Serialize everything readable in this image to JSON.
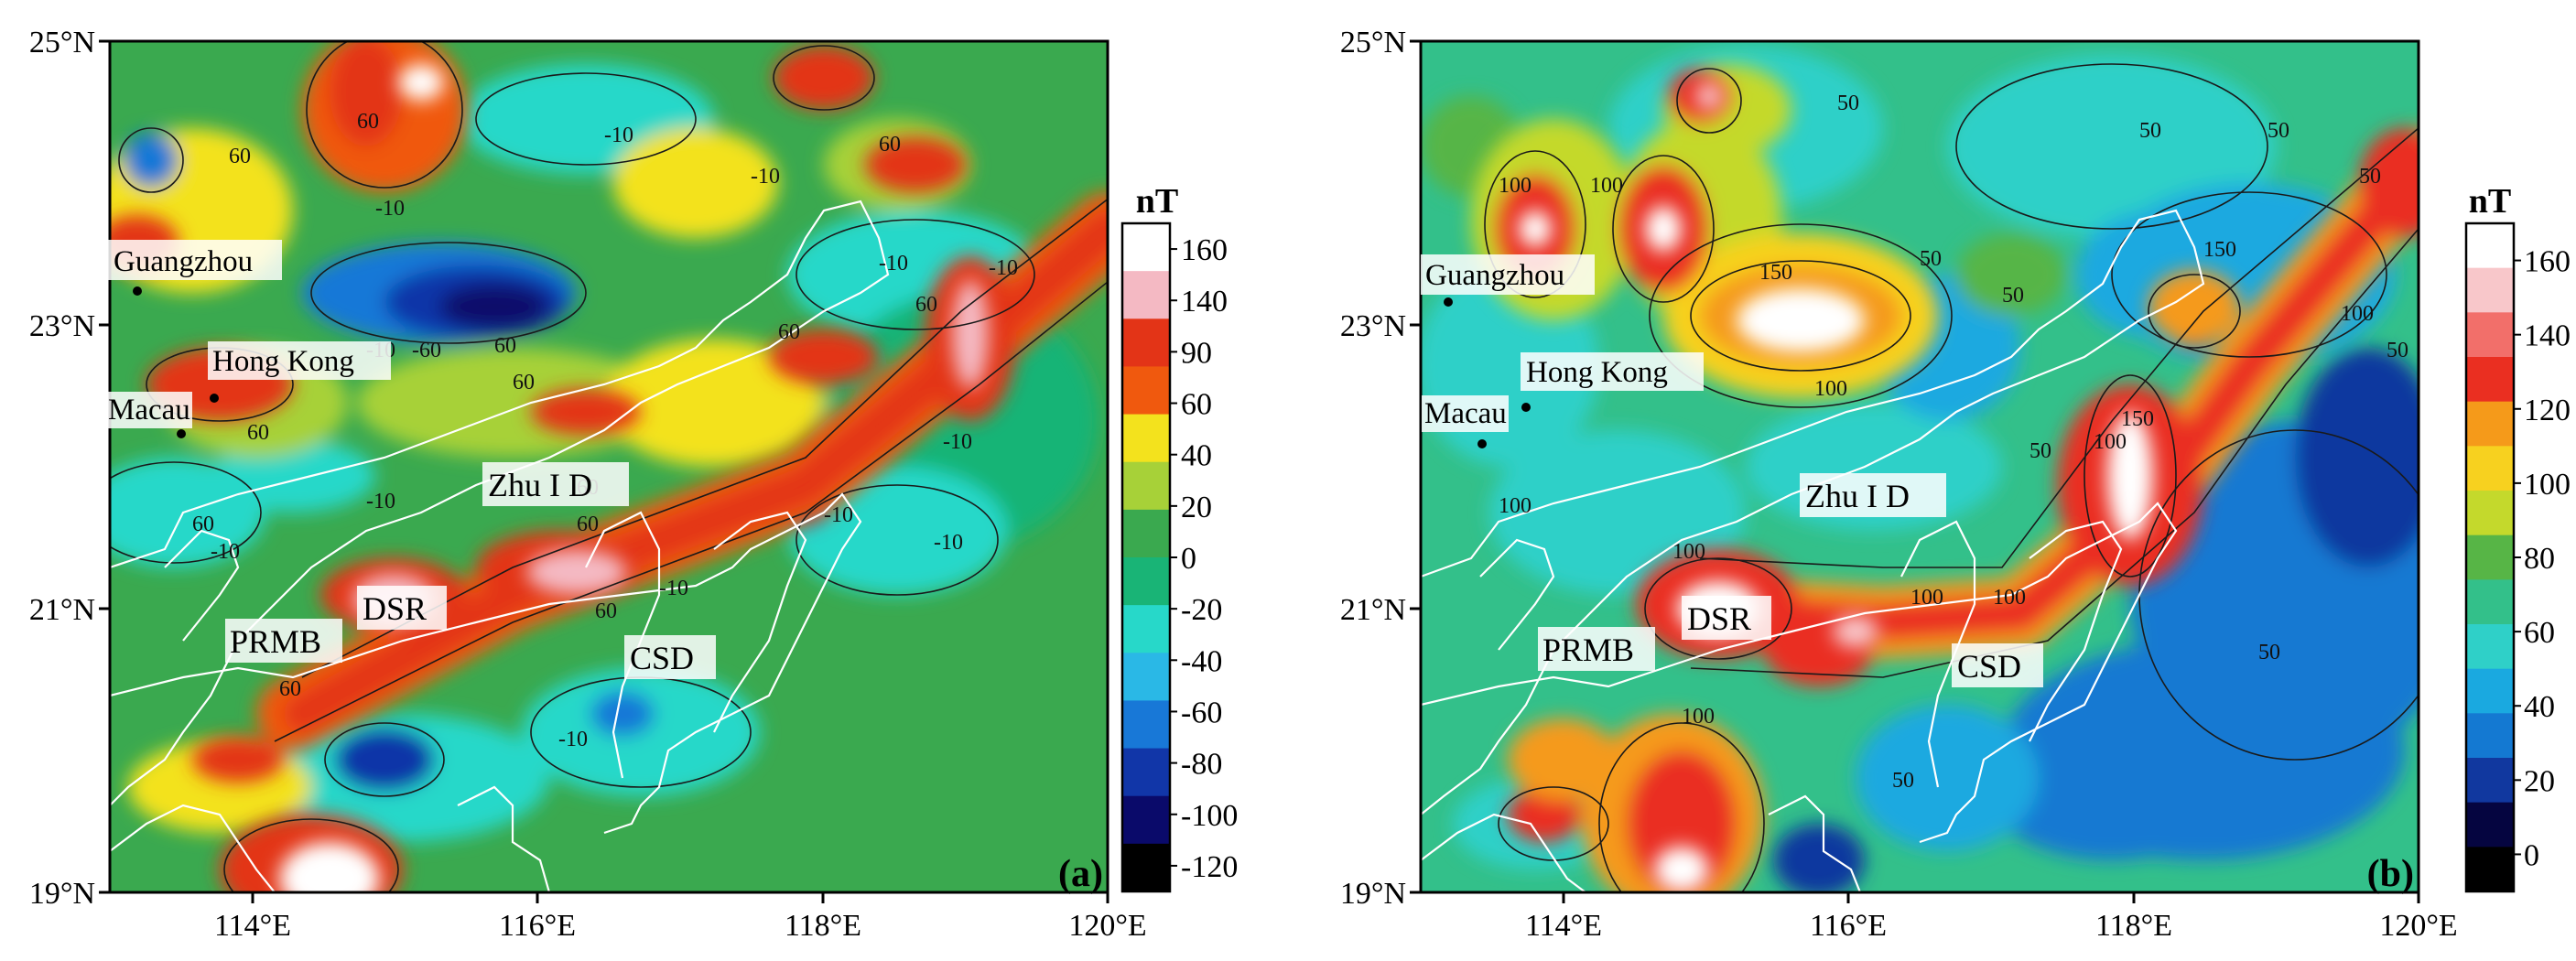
{
  "axes": {
    "lat_labels": [
      "25°N",
      "23°N",
      "21°N",
      "19°N"
    ],
    "lon_labels": [
      "114°E",
      "116°E",
      "118°E",
      "120°E"
    ],
    "lat_range": [
      19,
      25
    ],
    "lon_range": [
      113,
      120
    ]
  },
  "panels": [
    {
      "id": "a",
      "label": "(a)",
      "colorbar_unit": "nT",
      "colorbar_ticks": [
        "160",
        "140",
        "90",
        "60",
        "40",
        "20",
        "0",
        "-20",
        "-40",
        "-60",
        "-80",
        "-100",
        "-120"
      ],
      "colorbar_colors": [
        "#ffffff",
        "#f4b9c3",
        "#e33417",
        "#f0590e",
        "#f3e21d",
        "#a7d138",
        "#3aa94f",
        "#19b476",
        "#27d8c9",
        "#2ab8e6",
        "#1878d7",
        "#1136a8",
        "#0a0a6a",
        "#000000"
      ],
      "places": {
        "guangzhou": "Guangzhou",
        "hongkong": "Hong Kong",
        "macau": "Macau"
      },
      "regions": {
        "zhu": "Zhu I D",
        "dsr": "DSR",
        "prmb": "PRMB",
        "csd": "CSD"
      },
      "contour_labels": [
        "60",
        "60",
        "-10",
        "-10",
        "-10",
        "60",
        "-10",
        "-60",
        "60",
        "60",
        "-10",
        "60",
        "-10",
        "60",
        "60",
        "60",
        "60",
        "-10",
        "-10",
        "-10",
        "-10",
        "60",
        "60",
        "-10",
        "-10",
        "60",
        "60",
        "-10"
      ]
    },
    {
      "id": "b",
      "label": "(b)",
      "colorbar_unit": "nT",
      "colorbar_ticks": [
        "160",
        "140",
        "120",
        "100",
        "80",
        "60",
        "40",
        "20",
        "0"
      ],
      "colorbar_colors": [
        "#ffffff",
        "#f8c7ca",
        "#f26f6a",
        "#ea2f21",
        "#f59a1a",
        "#f7d11f",
        "#c4d92c",
        "#57b546",
        "#33c08a",
        "#2fd0c8",
        "#1aa9e0",
        "#1479d2",
        "#11389f",
        "#050540",
        "#000000"
      ],
      "places": {
        "guangzhou": "Guangzhou",
        "hongkong": "Hong Kong",
        "macau": "Macau"
      },
      "regions": {
        "zhu": "Zhu I D",
        "dsr": "DSR",
        "prmb": "PRMB",
        "csd": "CSD"
      },
      "contour_labels": [
        "100",
        "150",
        "100",
        "50",
        "50",
        "50",
        "50",
        "50",
        "100",
        "100",
        "100",
        "150",
        "100",
        "50",
        "100",
        "100",
        "150",
        "100",
        "50",
        "50",
        "50",
        "100",
        "50"
      ]
    }
  ]
}
